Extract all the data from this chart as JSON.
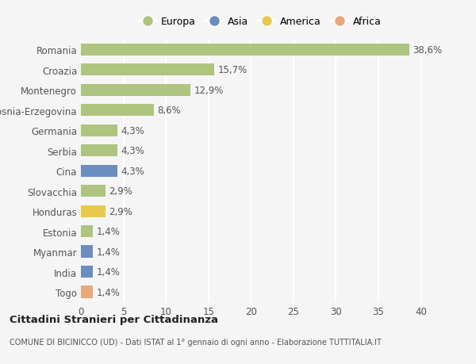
{
  "categories": [
    "Romania",
    "Croazia",
    "Montenegro",
    "Bosnia-Erzegovina",
    "Germania",
    "Serbia",
    "Cina",
    "Slovacchia",
    "Honduras",
    "Estonia",
    "Myanmar",
    "India",
    "Togo"
  ],
  "values": [
    38.6,
    15.7,
    12.9,
    8.6,
    4.3,
    4.3,
    4.3,
    2.9,
    2.9,
    1.4,
    1.4,
    1.4,
    1.4
  ],
  "labels": [
    "38,6%",
    "15,7%",
    "12,9%",
    "8,6%",
    "4,3%",
    "4,3%",
    "4,3%",
    "2,9%",
    "2,9%",
    "1,4%",
    "1,4%",
    "1,4%",
    "1,4%"
  ],
  "continents": [
    "Europa",
    "Europa",
    "Europa",
    "Europa",
    "Europa",
    "Europa",
    "Asia",
    "Europa",
    "America",
    "Europa",
    "Asia",
    "Asia",
    "Africa"
  ],
  "colors": {
    "Europa": "#aec47f",
    "Asia": "#6b8dbf",
    "America": "#e8c94e",
    "Africa": "#e8a87c"
  },
  "legend_order": [
    "Europa",
    "Asia",
    "America",
    "Africa"
  ],
  "xlim": [
    0,
    42
  ],
  "xticks": [
    0,
    5,
    10,
    15,
    20,
    25,
    30,
    35,
    40
  ],
  "title": "Cittadini Stranieri per Cittadinanza",
  "subtitle": "COMUNE DI BICINICCO (UD) - Dati ISTAT al 1° gennaio di ogni anno - Elaborazione TUTTITALIA.IT",
  "bg_color": "#f5f5f5",
  "bar_height": 0.6,
  "grid_color": "#ffffff",
  "label_fontsize": 8.5,
  "tick_fontsize": 8.5
}
